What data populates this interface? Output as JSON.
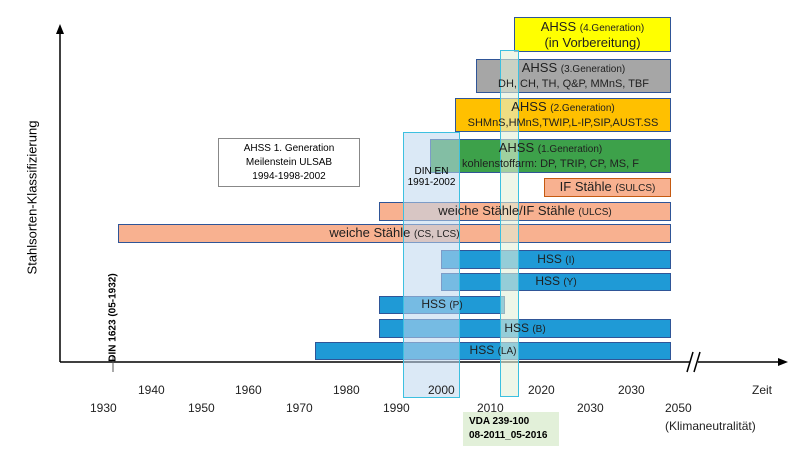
{
  "y_axis_label": "Stahlsorten-Klassifizierung",
  "x_axis_label": "Zeit",
  "years_row1": [
    "1940",
    "1960",
    "1980",
    "2000",
    "2020",
    "2030"
  ],
  "years_row2": [
    "1930",
    "1950",
    "1970",
    "1990",
    "2010",
    "2030",
    "2050"
  ],
  "end_note": "(Klimaneutralität)",
  "din1623": "DIN 1623 (05-1932)",
  "milestone": {
    "line1": "AHSS 1. Generation",
    "line2": "Meilenstein ULSAB",
    "line3": "1994-1998-2002"
  },
  "din_en": {
    "line1": "DIN EN",
    "line2": "1991-2002"
  },
  "vda": {
    "line1": "VDA 239-100",
    "line2": "08-2011_05-2016"
  },
  "bars": [
    {
      "main": "AHSS",
      "sub": "(4.Generation)",
      "line2": "(in Vorbereitung)",
      "color": "#ffff00"
    },
    {
      "main": "AHSS",
      "sub": "(3.Generation)",
      "line2": "DH, CH, TH, Q&P, MMnS, TBF",
      "color": "#a6a6a6"
    },
    {
      "main": "AHSS",
      "sub": "(2.Generation)",
      "line2": "SHMnS,HMnS,TWIP,L-IP,SIP,AUST.SS",
      "color": "#ffc000"
    },
    {
      "main": "AHSS",
      "sub": "(1.Generation)",
      "line2": "kohlenstoffarm: DP, TRIP, CP, MS, F",
      "color": "#3da14a"
    },
    {
      "main": "IF Stähle",
      "sub": "(SULCS)",
      "color": "#f8b190"
    },
    {
      "main": "weiche Stähle/IF Stähle",
      "sub": "(ULCS)",
      "color": "#f8b190"
    },
    {
      "main": "weiche Stähle",
      "sub": "(CS, LCS)",
      "color": "#f8b190"
    },
    {
      "main": "HSS",
      "sub": "(I)",
      "color": "#1f9ad6"
    },
    {
      "main": "HSS",
      "sub": "(Y)",
      "color": "#1f9ad6"
    },
    {
      "main": "HSS",
      "sub": "(P)",
      "color": "#1f9ad6"
    },
    {
      "main": "HSS",
      "sub": "(B)",
      "color": "#1f9ad6"
    },
    {
      "main": "HSS",
      "sub": "(LA)",
      "color": "#1f9ad6"
    }
  ]
}
